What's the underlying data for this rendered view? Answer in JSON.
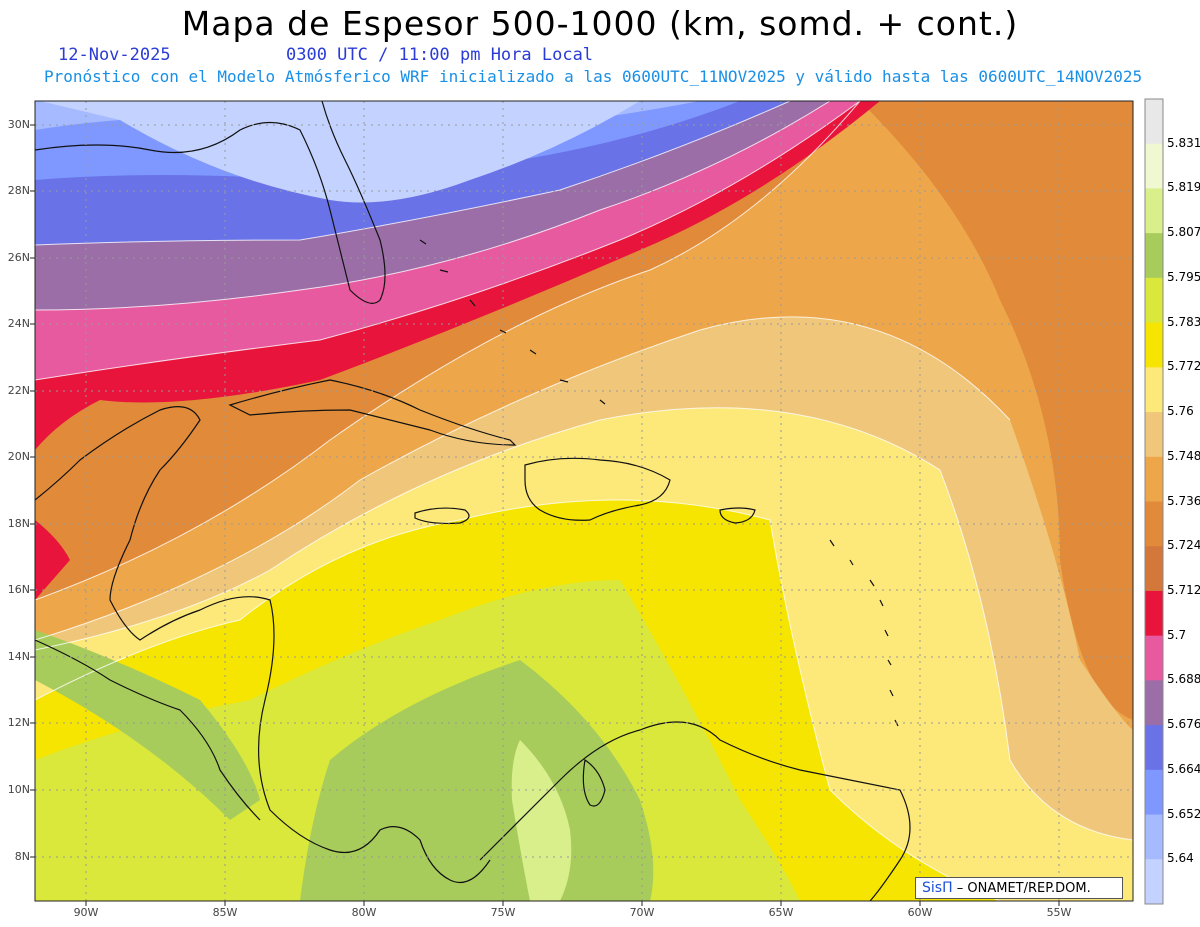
{
  "header": {
    "title": "Mapa de Espesor 500-1000 (km, somd. + cont.)",
    "date": "12-Nov-2025",
    "time": "0300 UTC / 11:00 pm Hora Local",
    "subtitle": "Pronóstico con el Modelo Atmósferico WRF inicializado a las 0600UTC_11NOV2025 y válido hasta las  0600UTC_14NOV2025",
    "date_color": "#2a3bd6",
    "subtitle_color": "#1a8fe6"
  },
  "axes": {
    "lat_labels": [
      "30N",
      "28N",
      "26N",
      "24N",
      "22N",
      "20N",
      "18N",
      "16N",
      "14N",
      "12N",
      "10N",
      "8N"
    ],
    "lon_labels": [
      "90W",
      "85W",
      "80W",
      "75W",
      "70W",
      "65W",
      "60W",
      "55W"
    ]
  },
  "colorbar": {
    "labels": [
      "5.831",
      "5.819",
      "5.807",
      "5.795",
      "5.783",
      "5.772",
      "5.76",
      "5.748",
      "5.736",
      "5.724",
      "5.712",
      "5.7",
      "5.688",
      "5.676",
      "5.664",
      "5.652",
      "5.64"
    ],
    "colors": [
      "#e8e8e8",
      "#eff8d0",
      "#d8ef8c",
      "#a8cc5c",
      "#d9e83a",
      "#f5e500",
      "#fde87a",
      "#f0c77a",
      "#eda74a",
      "#e08a3a",
      "#d4773a",
      "#e8143c",
      "#e85aa0",
      "#9b6ea8",
      "#6a72e8",
      "#7e98ff",
      "#a6baff",
      "#c4d2ff"
    ]
  },
  "credit": {
    "brand": "SisΠ",
    "org": " – ONAMET/REP.DOM."
  }
}
